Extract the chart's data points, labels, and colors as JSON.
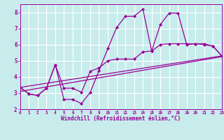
{
  "bg_color": "#c8ecec",
  "grid_color": "#ffffff",
  "line_color": "#990099",
  "xlabel": "Windchill (Refroidissement éolien,°C)",
  "xlim": [
    0,
    23
  ],
  "ylim": [
    2,
    8.5
  ],
  "yticks": [
    2,
    3,
    4,
    5,
    6,
    7,
    8
  ],
  "xticks": [
    0,
    1,
    2,
    3,
    4,
    5,
    6,
    7,
    8,
    9,
    10,
    11,
    12,
    13,
    14,
    15,
    16,
    17,
    18,
    19,
    20,
    21,
    22,
    23
  ],
  "curve1_x": [
    0,
    1,
    2,
    3,
    4,
    5,
    6,
    7,
    8,
    9,
    10,
    11,
    12,
    13,
    14,
    15,
    16,
    17,
    18,
    19,
    20,
    21,
    22,
    23
  ],
  "curve1_y": [
    3.35,
    2.95,
    2.85,
    3.3,
    4.75,
    2.6,
    2.6,
    2.35,
    3.05,
    4.4,
    5.75,
    7.05,
    7.75,
    7.75,
    8.2,
    5.6,
    7.25,
    7.95,
    7.95,
    6.0,
    6.05,
    6.0,
    5.9,
    5.3
  ],
  "curve2_x": [
    0,
    1,
    2,
    3,
    4,
    5,
    6,
    7,
    8,
    9,
    10,
    11,
    12,
    13,
    14,
    15,
    16,
    17,
    18,
    19,
    20,
    21,
    22,
    23
  ],
  "curve2_y": [
    3.35,
    2.95,
    2.85,
    3.3,
    4.75,
    3.3,
    3.3,
    3.05,
    4.35,
    4.55,
    5.0,
    5.1,
    5.1,
    5.1,
    5.55,
    5.6,
    6.0,
    6.05,
    6.05,
    6.05,
    6.05,
    6.05,
    5.9,
    5.3
  ],
  "line1_x": [
    0,
    23
  ],
  "line1_y": [
    3.35,
    5.3
  ],
  "line2_x": [
    0,
    23
  ],
  "line2_y": [
    3.1,
    5.25
  ]
}
